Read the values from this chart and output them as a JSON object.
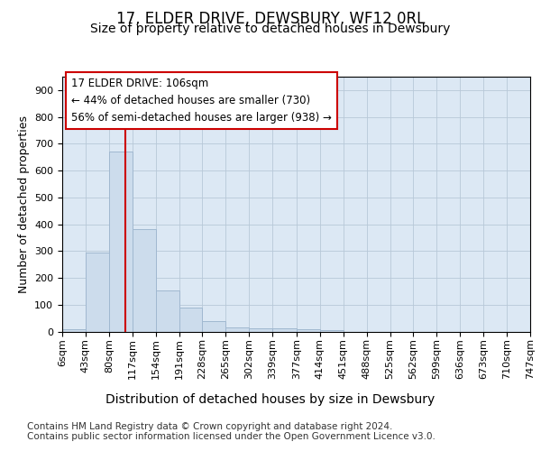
{
  "title": "17, ELDER DRIVE, DEWSBURY, WF12 0RL",
  "subtitle": "Size of property relative to detached houses in Dewsbury",
  "xlabel": "Distribution of detached houses by size in Dewsbury",
  "ylabel": "Number of detached properties",
  "footer_line1": "Contains HM Land Registry data © Crown copyright and database right 2024.",
  "footer_line2": "Contains public sector information licensed under the Open Government Licence v3.0.",
  "annotation_line1": "17 ELDER DRIVE: 106sqm",
  "annotation_line2": "← 44% of detached houses are smaller (730)",
  "annotation_line3": "56% of semi-detached houses are larger (938) →",
  "bar_edges": [
    6,
    43,
    80,
    117,
    154,
    191,
    228,
    265,
    302,
    339,
    377,
    414,
    451,
    488,
    525,
    562,
    599,
    636,
    673,
    710,
    747
  ],
  "bar_heights": [
    8,
    295,
    672,
    383,
    152,
    90,
    37,
    14,
    13,
    13,
    10,
    5,
    0,
    0,
    0,
    0,
    0,
    0,
    0,
    0
  ],
  "bar_color": "#ccdcec",
  "bar_edge_color": "#a0b8d0",
  "vline_color": "#cc0000",
  "vline_x": 106,
  "ylim": [
    0,
    950
  ],
  "yticks": [
    0,
    100,
    200,
    300,
    400,
    500,
    600,
    700,
    800,
    900
  ],
  "plot_bg_color": "#dce8f4",
  "annotation_box_color": "#ffffff",
  "annotation_box_edge": "#cc0000",
  "title_fontsize": 12,
  "subtitle_fontsize": 10,
  "xlabel_fontsize": 10,
  "ylabel_fontsize": 9,
  "tick_fontsize": 8,
  "annotation_fontsize": 8.5,
  "footer_fontsize": 7.5
}
